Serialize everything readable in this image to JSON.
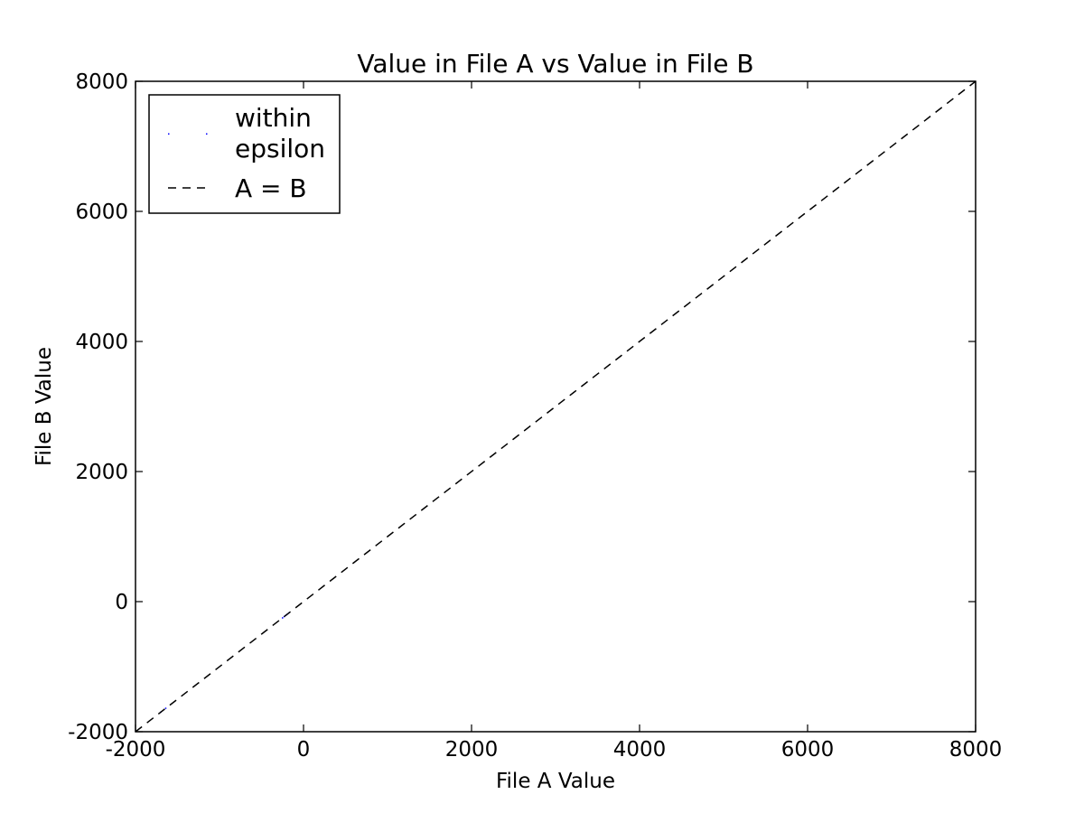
{
  "chart_data": {
    "type": "scatter",
    "title": "Value in File A vs Value in File B",
    "xlabel": "File A Value",
    "ylabel": "File B Value",
    "xlim": [
      -2000,
      8000
    ],
    "ylim": [
      -2000,
      8000
    ],
    "xticks": [
      -2000,
      0,
      2000,
      4000,
      6000,
      8000
    ],
    "yticks": [
      -2000,
      0,
      2000,
      4000,
      6000,
      8000
    ],
    "xtick_labels": [
      "-2000",
      "0",
      "2000",
      "4000",
      "6000",
      "8000"
    ],
    "ytick_labels": [
      "-2000",
      "0",
      "2000",
      "4000",
      "6000",
      "8000"
    ],
    "grid": false,
    "legend": {
      "placement": "top-left",
      "entries": [
        {
          "label_lines": [
            "within",
            "epsilon"
          ],
          "style": "points"
        },
        {
          "label_lines": [
            "A = B"
          ],
          "style": "dashed-line"
        }
      ]
    },
    "series": [
      {
        "name": "within epsilon",
        "kind": "scatter",
        "color": "#0000ff",
        "x": [
          -1700,
          -1640,
          -250,
          -230,
          -210,
          -190,
          -170
        ],
        "y": [
          -1700,
          -1640,
          -250,
          -230,
          -210,
          -190,
          -170
        ]
      },
      {
        "name": "A = B",
        "kind": "line",
        "style": "dashed",
        "color": "#000000",
        "x": [
          -2000,
          8000
        ],
        "y": [
          -2000,
          8000
        ]
      }
    ]
  }
}
